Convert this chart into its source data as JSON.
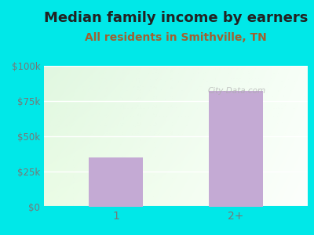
{
  "title": "Median family income by earners",
  "subtitle": "All residents in Smithville, TN",
  "categories": [
    "1",
    "2+"
  ],
  "values": [
    35000,
    82000
  ],
  "bar_color": "#c4aad4",
  "outer_bg": "#00e8e8",
  "title_color": "#222222",
  "subtitle_color": "#a06030",
  "tick_color": "#777777",
  "ylim": [
    0,
    100000
  ],
  "yticks": [
    0,
    25000,
    50000,
    75000,
    100000
  ],
  "ytick_labels": [
    "$0",
    "$25k",
    "$50k",
    "$75k",
    "$100k"
  ],
  "title_fontsize": 13,
  "subtitle_fontsize": 10,
  "watermark": "City-Data.com",
  "plot_bg_topleft": [
    0.88,
    0.97,
    0.88,
    1.0
  ],
  "plot_bg_topright": [
    0.97,
    1.0,
    0.97,
    1.0
  ],
  "plot_bg_bottomleft": [
    0.92,
    0.99,
    0.9,
    1.0
  ],
  "plot_bg_bottomright": [
    0.99,
    1.0,
    0.99,
    1.0
  ]
}
